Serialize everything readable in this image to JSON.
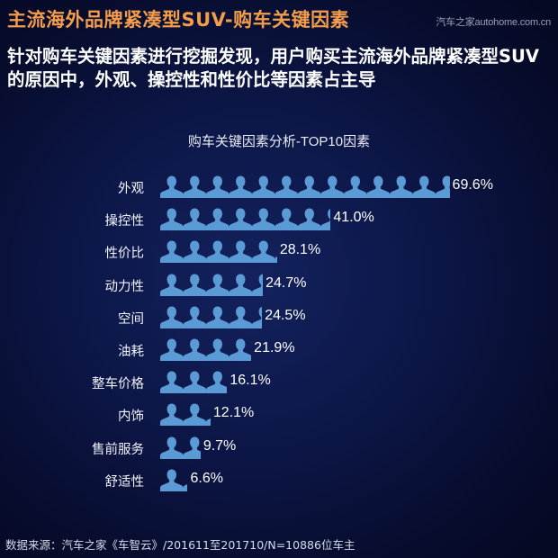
{
  "header": {
    "title": "主流海外品牌紧凑型SUV-购车关键因素",
    "watermark": "汽车之家autohome.com.cn"
  },
  "summary": "针对购车关键因素进行挖掘发现，用户购买主流海外品牌紧凑型SUV的原因中，外观、操控性和性价比等因素占主导",
  "colors": {
    "title": "#f39c4a",
    "icon": "#5b9bd5",
    "background": "#0c1646"
  },
  "chart_data": {
    "type": "bar",
    "orientation": "horizontal",
    "style": "pictograph-person-icons",
    "title": "购车关键因素分析-TOP10因素",
    "xlabel": "",
    "ylabel": "",
    "unit": "%",
    "categories": [
      "外观",
      "操控性",
      "性价比",
      "动力性",
      "空间",
      "油耗",
      "整车价格",
      "内饰",
      "售前服务",
      "舒适性"
    ],
    "values": [
      69.6,
      41.0,
      28.1,
      24.7,
      24.5,
      21.9,
      16.1,
      12.1,
      9.7,
      6.6
    ],
    "value_labels": [
      "69.6%",
      "41.0%",
      "28.1%",
      "24.7%",
      "24.5%",
      "21.9%",
      "16.1%",
      "12.1%",
      "9.7%",
      "6.6%"
    ],
    "grid": false,
    "legend": null
  },
  "source": "数据来源：汽车之家《车智云》/201611至201710/N=10886位车主"
}
